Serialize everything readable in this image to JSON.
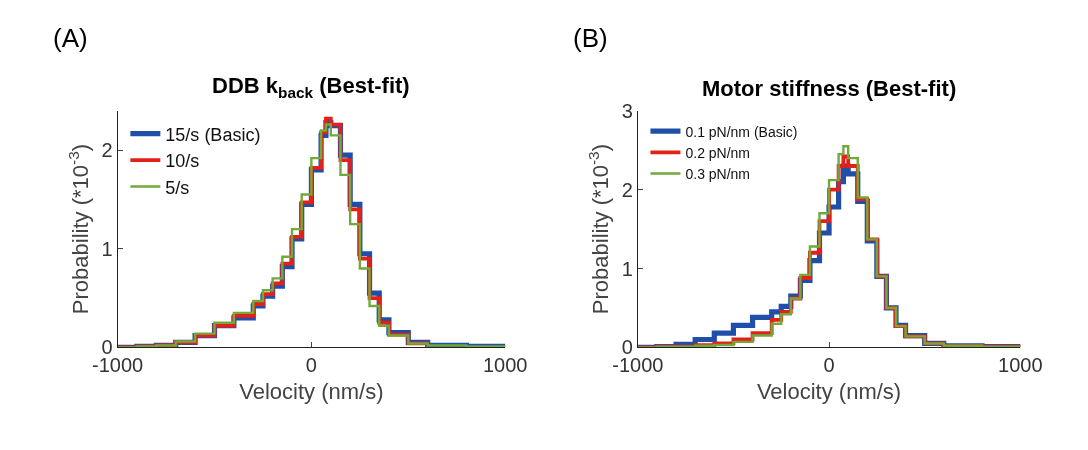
{
  "chart_data": [
    {
      "type": "step",
      "title": "DDB k$_{back}$ (Best-fit)",
      "xlabel": "Velocity (nm/s)",
      "ylabel": "Probability (*10$^{-3}$)",
      "annotations": [
        "(A)"
      ],
      "x": [
        -1000,
        -900,
        -800,
        -700,
        -600,
        -500,
        -400,
        -300,
        -250,
        -200,
        -150,
        -100,
        -50,
        0,
        50,
        75,
        100,
        150,
        200,
        250,
        300,
        350,
        400,
        500,
        600,
        800,
        1000
      ],
      "series": [
        {
          "name": "15/s (Basic)",
          "color": "#1f4fa8",
          "values": [
            0,
            0.01,
            0.02,
            0.05,
            0.12,
            0.22,
            0.3,
            0.42,
            0.52,
            0.62,
            0.82,
            1.1,
            1.45,
            1.8,
            2.15,
            2.28,
            2.25,
            1.95,
            1.45,
            0.95,
            0.55,
            0.28,
            0.15,
            0.05,
            0.02,
            0.01,
            0
          ]
        },
        {
          "name": "10/s",
          "color": "#e32119",
          "values": [
            0,
            0.01,
            0.02,
            0.05,
            0.12,
            0.22,
            0.32,
            0.44,
            0.54,
            0.65,
            0.85,
            1.12,
            1.47,
            1.82,
            2.18,
            2.32,
            2.26,
            1.9,
            1.4,
            0.9,
            0.5,
            0.25,
            0.13,
            0.04,
            0.02,
            null,
            null
          ]
        },
        {
          "name": "5/s",
          "color": "#72a93a",
          "values": [
            0,
            0.01,
            0.02,
            0.06,
            0.14,
            0.25,
            0.35,
            0.47,
            0.58,
            0.7,
            0.92,
            1.2,
            1.55,
            1.92,
            2.2,
            2.26,
            2.15,
            1.75,
            1.25,
            0.8,
            0.42,
            0.22,
            0.12,
            0.04,
            0.02,
            0.01,
            0
          ]
        }
      ],
      "xlim": [
        -1000,
        1000
      ],
      "xticks": [
        -1000,
        0,
        1000
      ],
      "ylim": [
        0,
        2.4
      ],
      "yticks": [
        0,
        1,
        2
      ],
      "legend": "top left"
    },
    {
      "type": "step",
      "title": "Motor stiffness (Best-fit)",
      "xlabel": "Velocity (nm/s)",
      "ylabel": "Probability (*10$^{-3}$)",
      "annotations": [
        "(B)"
      ],
      "x": [
        -1000,
        -900,
        -800,
        -700,
        -600,
        -500,
        -400,
        -300,
        -250,
        -200,
        -150,
        -100,
        -50,
        0,
        50,
        75,
        100,
        150,
        200,
        250,
        300,
        350,
        400,
        500,
        600,
        800,
        1000
      ],
      "series": [
        {
          "name": "0.1 pN/nm (Basic)",
          "color": "#1f4fa8",
          "values": [
            0,
            0.01,
            0.04,
            0.1,
            0.18,
            0.28,
            0.38,
            0.45,
            0.52,
            0.65,
            0.85,
            1.1,
            1.45,
            1.78,
            2.1,
            2.3,
            2.2,
            1.85,
            1.35,
            0.9,
            0.5,
            0.28,
            0.15,
            0.05,
            0.02,
            0.01,
            0
          ]
        },
        {
          "name": "0.2 pN/nm",
          "color": "#e32119",
          "values": [
            0,
            0.01,
            0.01,
            0.03,
            0.05,
            0.1,
            0.18,
            0.35,
            0.45,
            0.62,
            0.88,
            1.2,
            1.6,
            2.0,
            2.3,
            2.42,
            2.3,
            1.88,
            1.37,
            0.9,
            0.5,
            0.27,
            0.14,
            0.05,
            0.02,
            0.01,
            0
          ]
        },
        {
          "name": "0.3 pN/nm",
          "color": "#72a93a",
          "values": [
            0,
            0.01,
            0.01,
            0.02,
            0.03,
            0.07,
            0.15,
            0.3,
            0.42,
            0.62,
            0.92,
            1.28,
            1.7,
            2.12,
            2.45,
            2.55,
            2.4,
            1.9,
            1.37,
            0.9,
            0.5,
            0.27,
            0.14,
            0.05,
            0.02,
            0.01,
            0
          ]
        }
      ],
      "xlim": [
        -1000,
        1000
      ],
      "xticks": [
        -1000,
        0,
        1000
      ],
      "ylim": [
        0,
        3
      ],
      "yticks": [
        0,
        1,
        2,
        3
      ],
      "legend": "top left"
    }
  ]
}
